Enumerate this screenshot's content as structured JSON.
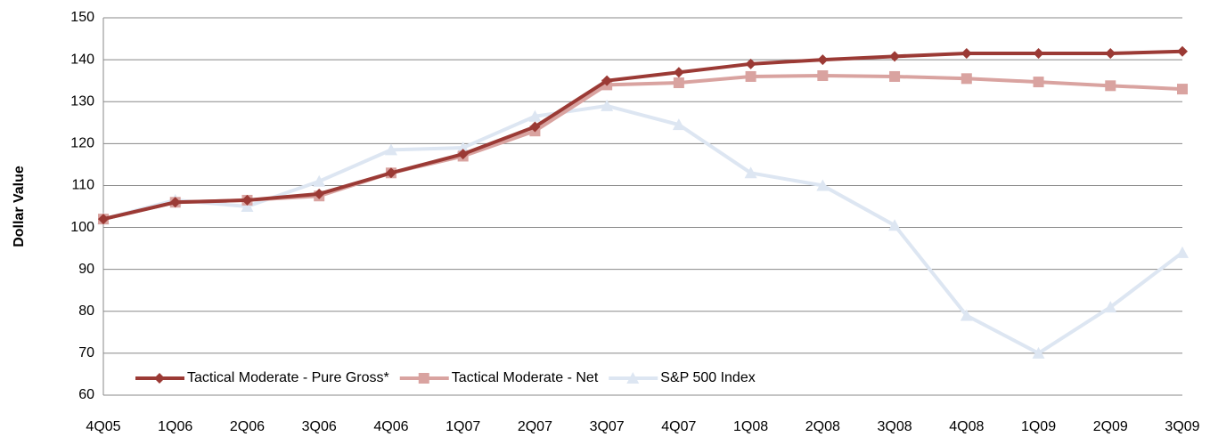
{
  "chart_data": {
    "type": "line",
    "y_label": "Dollar Value",
    "categories": [
      "4Q05",
      "1Q06",
      "2Q06",
      "3Q06",
      "4Q06",
      "1Q07",
      "2Q07",
      "3Q07",
      "4Q07",
      "1Q08",
      "2Q08",
      "3Q08",
      "4Q08",
      "1Q09",
      "2Q09",
      "3Q09"
    ],
    "series": [
      {
        "name": "Tactical Moderate - Pure Gross*",
        "color": "#9b3a35",
        "marker": "diamond",
        "values": [
          102,
          106,
          106.5,
          108,
          113,
          117.5,
          124,
          135,
          137,
          139,
          140,
          140.8,
          141.5,
          141.5,
          141.5,
          142
        ]
      },
      {
        "name": "Tactical Moderate - Net",
        "color": "#d9a3a0",
        "marker": "square",
        "values": [
          102,
          106,
          106.5,
          107.5,
          113,
          117,
          123,
          134,
          134.5,
          136,
          136.2,
          136,
          135.5,
          134.7,
          133.8,
          133
        ]
      },
      {
        "name": "S&P 500 Index",
        "color": "#dde6f2",
        "marker": "triangle",
        "values": [
          102,
          106.5,
          105,
          111,
          118.5,
          119,
          126.5,
          129,
          124.5,
          113,
          110,
          100.5,
          79,
          70,
          81,
          94
        ]
      }
    ],
    "ylim": [
      60,
      150
    ],
    "yticks": [
      60,
      70,
      80,
      90,
      100,
      110,
      120,
      130,
      140,
      150
    ],
    "grid": true,
    "legend": "bottom-left"
  }
}
